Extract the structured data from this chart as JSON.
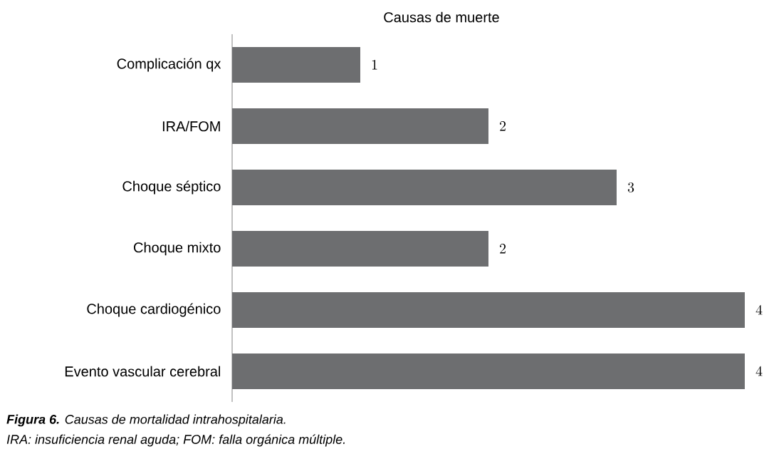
{
  "chart_data": {
    "type": "bar",
    "orientation": "horizontal",
    "title": "Causas de muerte",
    "categories": [
      "Complicación qx",
      "IRA/FOM",
      "Choque séptico",
      "Choque mixto",
      "Choque cardiogénico",
      "Evento vascular cerebral"
    ],
    "values": [
      1,
      2,
      3,
      2,
      4,
      4
    ],
    "color": "#6d6e70",
    "data_labels": true,
    "xlim": [
      0,
      4
    ],
    "tick_labels": "y",
    "annotations": [
      "**Figura 6.** Causas de mortalidad intrahospitalaria.",
      "IRA: insuficiencia renal aguda; FOM: falla orgánica múltiple."
    ]
  }
}
